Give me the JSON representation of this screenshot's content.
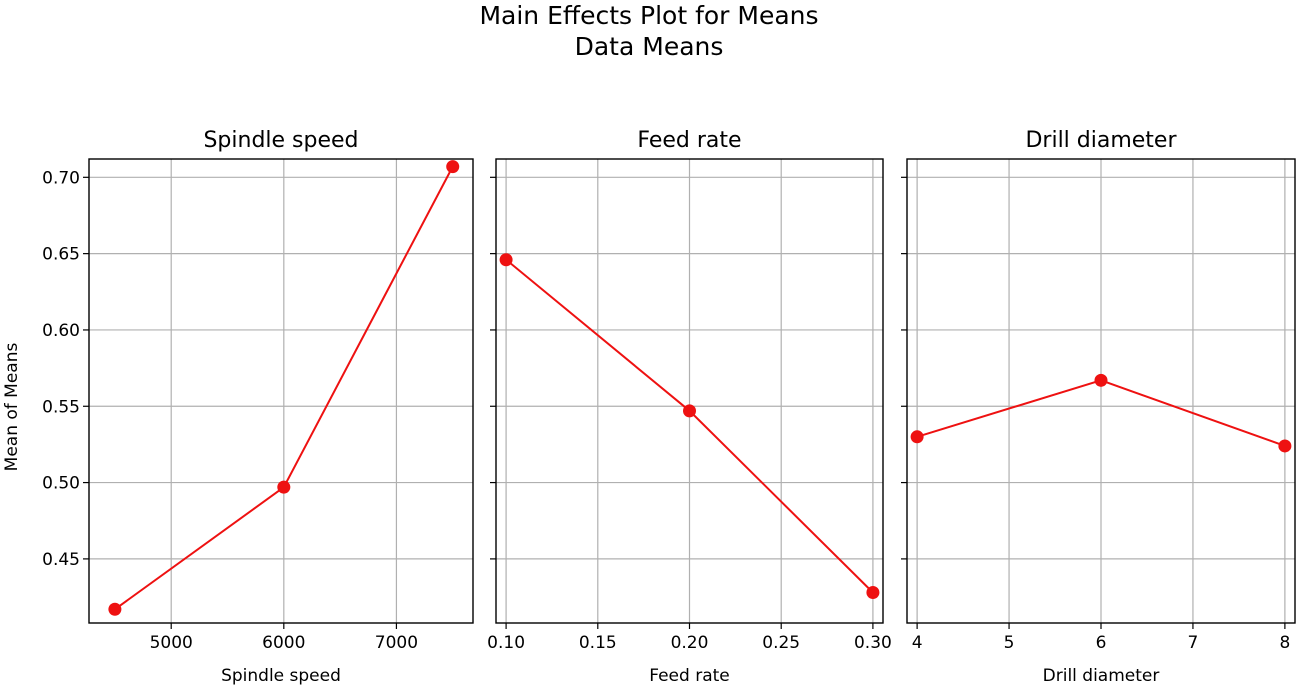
{
  "chart_data": {
    "type": "line",
    "title": "Main Effects Plot for Means",
    "subtitle": "Data Means",
    "ylabel": "Mean of Means",
    "ylim": [
      0.408,
      0.712
    ],
    "yticks": [
      0.45,
      0.5,
      0.55,
      0.6,
      0.65,
      0.7
    ],
    "ytick_labels": [
      "0.45",
      "0.50",
      "0.55",
      "0.60",
      "0.65",
      "0.70"
    ],
    "color": "#ee1111",
    "grid": true,
    "panels": [
      {
        "title": "Spindle speed",
        "xlabel": "Spindle speed",
        "x": [
          4500,
          6000,
          7500
        ],
        "y": [
          0.417,
          0.497,
          0.707
        ],
        "xlim": [
          4270,
          7680
        ],
        "xticks": [
          5000,
          6000,
          7000
        ],
        "xtick_labels": [
          "5000",
          "6000",
          "7000"
        ]
      },
      {
        "title": "Feed rate",
        "xlabel": "Feed rate",
        "x": [
          0.1,
          0.2,
          0.3
        ],
        "y": [
          0.646,
          0.547,
          0.428
        ],
        "xlim": [
          0.0945,
          0.3055
        ],
        "xticks": [
          0.1,
          0.15,
          0.2,
          0.25,
          0.3
        ],
        "xtick_labels": [
          "0.10",
          "0.15",
          "0.20",
          "0.25",
          "0.30"
        ]
      },
      {
        "title": "Drill diameter",
        "xlabel": "Drill diameter",
        "x": [
          4,
          6,
          8
        ],
        "y": [
          0.53,
          0.567,
          0.524
        ],
        "xlim": [
          3.89,
          8.11
        ],
        "xticks": [
          4,
          5,
          6,
          7,
          8
        ],
        "xtick_labels": [
          "4",
          "5",
          "6",
          "7",
          "8"
        ]
      }
    ]
  }
}
